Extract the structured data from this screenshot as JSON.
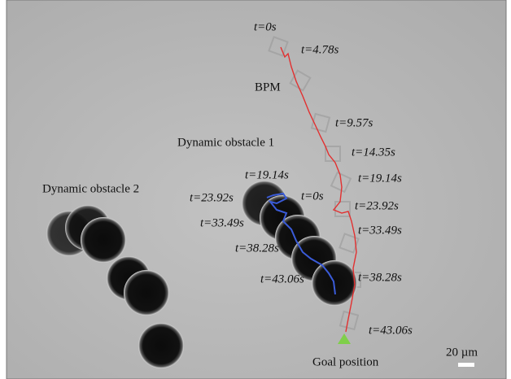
{
  "robot": {
    "label": "BPM",
    "times": [
      "t=0s",
      "t=4.78s",
      "t=9.57s",
      "t=14.35s",
      "t=19.14s",
      "t=23.92s",
      "t=33.49s",
      "t=38.28s",
      "t=43.06s"
    ]
  },
  "obstacle_1": {
    "label": "Dynamic obstacle 1",
    "times": [
      "t=0s",
      "t=19.14s",
      "t=23.92s",
      "t=33.49s",
      "t=38.28s",
      "t=43.06s"
    ]
  },
  "obstacle_2": {
    "label": "Dynamic obstacle 2"
  },
  "goal": "Goal position",
  "scale_bar": "20 µm"
}
